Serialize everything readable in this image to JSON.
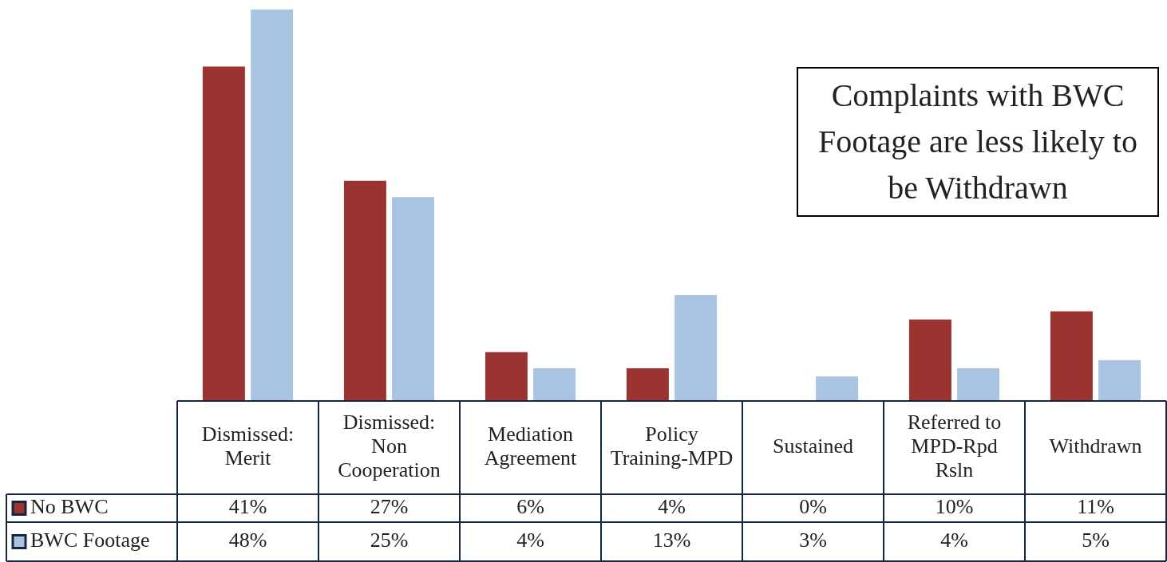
{
  "chart_data": {
    "type": "bar",
    "title": "Complaints with BWC Footage are less likely to be Withdrawn",
    "categories": [
      "Dismissed: Merit",
      "Dismissed: Non Cooperation",
      "Mediation Agreement",
      "Policy Training-MPD",
      "Sustained",
      "Referred to MPD-Rpd Rsln",
      "Withdrawn"
    ],
    "series": [
      {
        "name": "No BWC",
        "color": "#9b3330",
        "values": [
          41,
          27,
          6,
          4,
          0,
          10,
          11
        ],
        "value_labels": [
          "41%",
          "27%",
          "6%",
          "4%",
          "0%",
          "10%",
          "11%"
        ]
      },
      {
        "name": "BWC Footage",
        "color": "#a9c3e3",
        "values": [
          48,
          25,
          4,
          13,
          3,
          4,
          5
        ],
        "value_labels": [
          "48%",
          "25%",
          "4%",
          "13%",
          "3%",
          "4%",
          "5%"
        ]
      }
    ],
    "legend": "bottom"
  }
}
